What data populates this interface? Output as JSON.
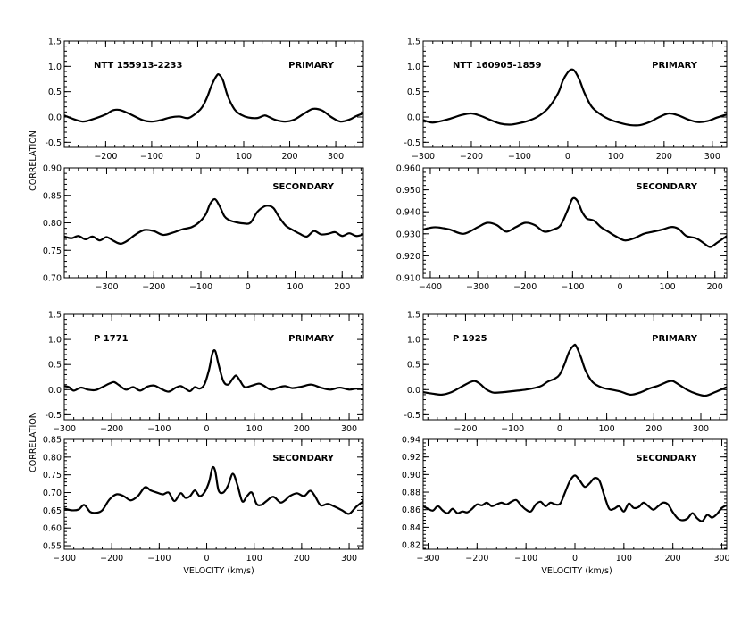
{
  "figure": {
    "ylabel": "CORRELATION",
    "xlabel": "VELOCITY (km/s)"
  },
  "chart_data": [
    {
      "type": "line",
      "object": "NTT 155913-2233",
      "component": "PRIMARY",
      "xlim": [
        -290,
        360
      ],
      "ylim": [
        -0.6,
        1.5
      ],
      "xticks": [
        -200,
        -100,
        0,
        100,
        200,
        300
      ],
      "yticks": [
        -0.5,
        0.0,
        0.5,
        1.0,
        1.5
      ],
      "ytick_labels": [
        "-0.5",
        "0.0",
        "0.5",
        "1.0",
        "1.5"
      ],
      "x": [
        -290,
        -270,
        -250,
        -230,
        -200,
        -185,
        -170,
        -150,
        -120,
        -100,
        -80,
        -60,
        -40,
        -20,
        0,
        10,
        20,
        30,
        40,
        46,
        55,
        65,
        80,
        95,
        110,
        130,
        145,
        155,
        170,
        190,
        210,
        230,
        250,
        270,
        290,
        310,
        330,
        345,
        360
      ],
      "y": [
        0.03,
        -0.04,
        -0.09,
        -0.05,
        0.05,
        0.13,
        0.14,
        0.07,
        -0.06,
        -0.09,
        -0.06,
        -0.01,
        0.01,
        -0.02,
        0.1,
        0.2,
        0.38,
        0.62,
        0.8,
        0.84,
        0.72,
        0.42,
        0.15,
        0.04,
        -0.01,
        -0.02,
        0.03,
        0.0,
        -0.06,
        -0.09,
        -0.05,
        0.06,
        0.16,
        0.13,
        0.0,
        -0.09,
        -0.05,
        0.02,
        0.07
      ]
    },
    {
      "type": "line",
      "object": "NTT 160905-1859",
      "component": "PRIMARY",
      "xlim": [
        -300,
        330
      ],
      "ylim": [
        -0.6,
        1.5
      ],
      "xticks": [
        -300,
        -200,
        -100,
        0,
        100,
        200,
        300
      ],
      "yticks": [
        -0.5,
        0.0,
        0.5,
        1.0,
        1.5
      ],
      "ytick_labels": [
        "-0.5",
        "0.0",
        "0.5",
        "1.0",
        "1.5"
      ],
      "x": [
        -300,
        -280,
        -250,
        -220,
        -200,
        -180,
        -160,
        -140,
        -120,
        -100,
        -80,
        -60,
        -40,
        -20,
        -10,
        0,
        8,
        15,
        25,
        35,
        50,
        70,
        90,
        110,
        130,
        150,
        170,
        190,
        210,
        230,
        250,
        270,
        290,
        310,
        330
      ],
      "y": [
        -0.06,
        -0.11,
        -0.05,
        0.04,
        0.07,
        0.02,
        -0.06,
        -0.13,
        -0.15,
        -0.12,
        -0.07,
        0.02,
        0.18,
        0.47,
        0.72,
        0.88,
        0.94,
        0.9,
        0.72,
        0.47,
        0.2,
        0.04,
        -0.06,
        -0.12,
        -0.16,
        -0.16,
        -0.1,
        0.0,
        0.07,
        0.03,
        -0.05,
        -0.1,
        -0.08,
        -0.01,
        0.05
      ]
    },
    {
      "type": "line",
      "object": "NTT 155913-2233",
      "component": "SECONDARY",
      "xlim": [
        -390,
        245
      ],
      "ylim": [
        0.7,
        0.9
      ],
      "xticks": [
        -300,
        -200,
        -100,
        0,
        100,
        200
      ],
      "yticks": [
        0.7,
        0.75,
        0.8,
        0.85,
        0.9
      ],
      "ytick_labels": [
        "0.70",
        "0.75",
        "0.80",
        "0.85",
        "0.90"
      ],
      "x": [
        -390,
        -375,
        -360,
        -345,
        -330,
        -315,
        -300,
        -285,
        -270,
        -255,
        -240,
        -220,
        -200,
        -180,
        -160,
        -140,
        -120,
        -105,
        -90,
        -80,
        -70,
        -60,
        -50,
        -40,
        -25,
        -10,
        5,
        20,
        35,
        45,
        55,
        65,
        80,
        95,
        110,
        125,
        140,
        155,
        170,
        185,
        200,
        215,
        230,
        245
      ],
      "y": [
        0.775,
        0.772,
        0.776,
        0.77,
        0.775,
        0.768,
        0.774,
        0.767,
        0.762,
        0.768,
        0.778,
        0.787,
        0.785,
        0.778,
        0.782,
        0.788,
        0.792,
        0.8,
        0.815,
        0.835,
        0.843,
        0.83,
        0.812,
        0.805,
        0.801,
        0.799,
        0.8,
        0.82,
        0.83,
        0.831,
        0.826,
        0.812,
        0.795,
        0.787,
        0.78,
        0.775,
        0.785,
        0.779,
        0.78,
        0.783,
        0.776,
        0.781,
        0.776,
        0.779
      ]
    },
    {
      "type": "line",
      "object": "NTT 160905-1859",
      "component": "SECONDARY",
      "xlim": [
        -415,
        225
      ],
      "ylim": [
        0.91,
        0.96
      ],
      "xticks": [
        -400,
        -300,
        -200,
        -100,
        0,
        100,
        200
      ],
      "yticks": [
        0.91,
        0.92,
        0.93,
        0.94,
        0.95,
        0.96
      ],
      "ytick_labels": [
        "0.910",
        "0.920",
        "0.930",
        "0.940",
        "0.950",
        "0.960"
      ],
      "x": [
        -415,
        -390,
        -360,
        -330,
        -300,
        -280,
        -260,
        -240,
        -220,
        -200,
        -180,
        -160,
        -140,
        -125,
        -110,
        -100,
        -90,
        -80,
        -70,
        -55,
        -40,
        -25,
        -10,
        10,
        30,
        50,
        70,
        90,
        105,
        115,
        125,
        140,
        160,
        175,
        190,
        205,
        225
      ],
      "y": [
        0.932,
        0.933,
        0.932,
        0.93,
        0.933,
        0.935,
        0.934,
        0.931,
        0.933,
        0.935,
        0.934,
        0.931,
        0.932,
        0.934,
        0.941,
        0.946,
        0.945,
        0.94,
        0.937,
        0.936,
        0.933,
        0.931,
        0.929,
        0.927,
        0.928,
        0.93,
        0.931,
        0.932,
        0.933,
        0.933,
        0.932,
        0.929,
        0.928,
        0.926,
        0.924,
        0.926,
        0.929
      ]
    },
    {
      "type": "line",
      "object": "P 1771",
      "component": "PRIMARY",
      "xlim": [
        -300,
        330
      ],
      "ylim": [
        -0.6,
        1.5
      ],
      "xticks": [
        -300,
        -200,
        -100,
        0,
        100,
        200,
        300
      ],
      "yticks": [
        -0.5,
        0.0,
        0.5,
        1.0,
        1.5
      ],
      "ytick_labels": [
        "-0.5",
        "0.0",
        "0.5",
        "1.0",
        "1.5"
      ],
      "x": [
        -300,
        -290,
        -280,
        -265,
        -250,
        -235,
        -220,
        -205,
        -195,
        -185,
        -170,
        -155,
        -140,
        -125,
        -110,
        -95,
        -80,
        -65,
        -55,
        -45,
        -35,
        -25,
        -15,
        -5,
        5,
        12,
        18,
        25,
        35,
        45,
        55,
        62,
        70,
        80,
        95,
        110,
        120,
        135,
        150,
        165,
        180,
        200,
        220,
        240,
        260,
        280,
        300,
        315,
        330
      ],
      "y": [
        0.07,
        0.05,
        -0.02,
        0.04,
        0.0,
        -0.01,
        0.05,
        0.12,
        0.15,
        0.09,
        0.0,
        0.05,
        -0.02,
        0.06,
        0.08,
        0.01,
        -0.04,
        0.04,
        0.07,
        0.02,
        -0.03,
        0.05,
        0.02,
        0.1,
        0.4,
        0.72,
        0.77,
        0.5,
        0.17,
        0.1,
        0.22,
        0.28,
        0.18,
        0.05,
        0.08,
        0.12,
        0.08,
        0.0,
        0.04,
        0.07,
        0.03,
        0.06,
        0.1,
        0.04,
        0.0,
        0.04,
        0.0,
        0.02,
        0.01
      ]
    },
    {
      "type": "line",
      "object": "P 1925",
      "component": "PRIMARY",
      "xlim": [
        -290,
        355
      ],
      "ylim": [
        -0.6,
        1.5
      ],
      "xticks": [
        -200,
        -100,
        0,
        100,
        200,
        300
      ],
      "yticks": [
        -0.5,
        0.0,
        0.5,
        1.0,
        1.5
      ],
      "ytick_labels": [
        "-0.5",
        "0.0",
        "0.5",
        "1.0",
        "1.5"
      ],
      "x": [
        -290,
        -270,
        -250,
        -230,
        -210,
        -190,
        -180,
        -170,
        -155,
        -140,
        -120,
        -100,
        -80,
        -60,
        -40,
        -25,
        -10,
        0,
        10,
        20,
        30,
        35,
        45,
        55,
        70,
        90,
        110,
        130,
        150,
        170,
        190,
        210,
        230,
        240,
        250,
        270,
        290,
        310,
        330,
        355
      ],
      "y": [
        -0.05,
        -0.08,
        -0.1,
        -0.05,
        0.05,
        0.15,
        0.17,
        0.12,
        0.0,
        -0.06,
        -0.05,
        -0.03,
        -0.01,
        0.02,
        0.07,
        0.16,
        0.22,
        0.3,
        0.5,
        0.75,
        0.88,
        0.87,
        0.65,
        0.38,
        0.15,
        0.04,
        0.0,
        -0.04,
        -0.1,
        -0.06,
        0.02,
        0.08,
        0.16,
        0.17,
        0.12,
        0.0,
        -0.08,
        -0.12,
        -0.05,
        0.05
      ]
    },
    {
      "type": "line",
      "object": "P 1771",
      "component": "SECONDARY",
      "xlim": [
        -300,
        330
      ],
      "ylim": [
        0.54,
        0.85
      ],
      "xticks": [
        -300,
        -200,
        -100,
        0,
        100,
        200,
        300
      ],
      "yticks": [
        0.55,
        0.6,
        0.65,
        0.7,
        0.75,
        0.8,
        0.85
      ],
      "ytick_labels": [
        "0.55",
        "0.60",
        "0.65",
        "0.70",
        "0.75",
        "0.80",
        "0.85"
      ],
      "x": [
        -300,
        -285,
        -270,
        -258,
        -245,
        -232,
        -220,
        -205,
        -190,
        -175,
        -160,
        -145,
        -130,
        -118,
        -105,
        -92,
        -80,
        -68,
        -55,
        -45,
        -35,
        -25,
        -15,
        -5,
        5,
        12,
        18,
        25,
        35,
        45,
        55,
        65,
        75,
        85,
        95,
        105,
        115,
        125,
        140,
        155,
        165,
        175,
        190,
        205,
        218,
        228,
        240,
        255,
        270,
        285,
        300,
        315,
        330
      ],
      "y": [
        0.655,
        0.65,
        0.652,
        0.665,
        0.645,
        0.643,
        0.65,
        0.68,
        0.695,
        0.69,
        0.678,
        0.69,
        0.715,
        0.706,
        0.7,
        0.695,
        0.7,
        0.676,
        0.698,
        0.685,
        0.69,
        0.706,
        0.69,
        0.7,
        0.73,
        0.77,
        0.76,
        0.706,
        0.7,
        0.72,
        0.753,
        0.72,
        0.675,
        0.69,
        0.7,
        0.668,
        0.665,
        0.675,
        0.688,
        0.672,
        0.678,
        0.69,
        0.698,
        0.69,
        0.705,
        0.69,
        0.664,
        0.668,
        0.66,
        0.65,
        0.64,
        0.66,
        0.676
      ]
    },
    {
      "type": "line",
      "object": "P 1925",
      "component": "SECONDARY",
      "xlim": [
        -310,
        310
      ],
      "ylim": [
        0.815,
        0.94
      ],
      "xticks": [
        -300,
        -200,
        -100,
        0,
        100,
        200,
        300
      ],
      "yticks": [
        0.82,
        0.84,
        0.86,
        0.88,
        0.9,
        0.92,
        0.94
      ],
      "ytick_labels": [
        "0.82",
        "0.84",
        "0.86",
        "0.88",
        "0.90",
        "0.92",
        "0.94"
      ],
      "x": [
        -310,
        -300,
        -290,
        -280,
        -270,
        -260,
        -250,
        -240,
        -230,
        -220,
        -210,
        -200,
        -190,
        -180,
        -170,
        -160,
        -150,
        -140,
        -130,
        -120,
        -110,
        -100,
        -90,
        -80,
        -70,
        -60,
        -50,
        -40,
        -30,
        -20,
        -10,
        0,
        10,
        20,
        30,
        40,
        50,
        60,
        70,
        80,
        90,
        100,
        110,
        120,
        130,
        140,
        150,
        160,
        170,
        180,
        190,
        200,
        210,
        220,
        230,
        240,
        250,
        260,
        270,
        280,
        290,
        300,
        310
      ],
      "y": [
        0.864,
        0.861,
        0.859,
        0.864,
        0.859,
        0.856,
        0.861,
        0.856,
        0.858,
        0.857,
        0.861,
        0.866,
        0.865,
        0.868,
        0.864,
        0.866,
        0.868,
        0.866,
        0.869,
        0.871,
        0.865,
        0.86,
        0.858,
        0.866,
        0.869,
        0.864,
        0.868,
        0.866,
        0.867,
        0.88,
        0.893,
        0.899,
        0.893,
        0.886,
        0.89,
        0.896,
        0.893,
        0.876,
        0.861,
        0.861,
        0.864,
        0.858,
        0.867,
        0.862,
        0.863,
        0.868,
        0.864,
        0.86,
        0.864,
        0.868,
        0.866,
        0.857,
        0.85,
        0.848,
        0.85,
        0.856,
        0.85,
        0.847,
        0.854,
        0.851,
        0.855,
        0.862,
        0.865
      ]
    }
  ]
}
